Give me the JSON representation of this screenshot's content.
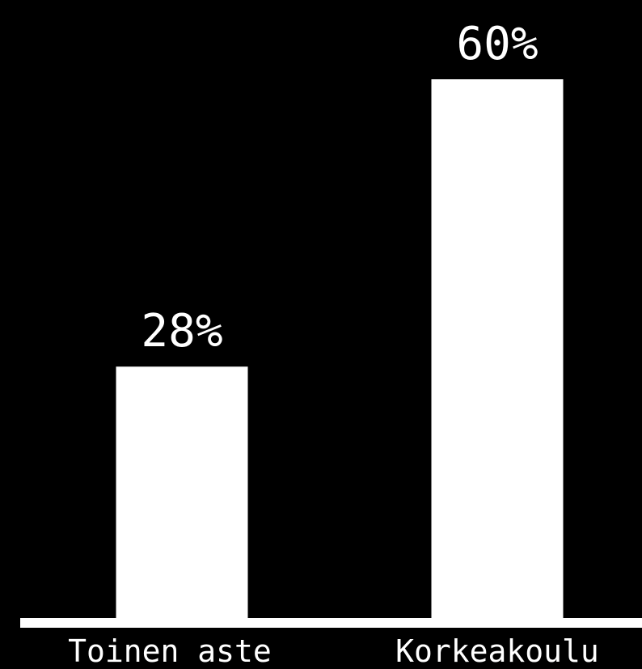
{
  "chart_data": {
    "type": "bar",
    "categories": [
      "Toinen aste",
      "Korkeakoulu"
    ],
    "values": [
      28,
      60
    ],
    "value_labels": [
      "28%",
      "60%"
    ],
    "title": "",
    "xlabel": "",
    "ylabel": "",
    "ylim": [
      0,
      66
    ],
    "grid": false,
    "legend": "none",
    "colors": {
      "background": "#000000",
      "bar": "#ffffff",
      "axis": "#ffffff",
      "text": "#ffffff"
    }
  }
}
